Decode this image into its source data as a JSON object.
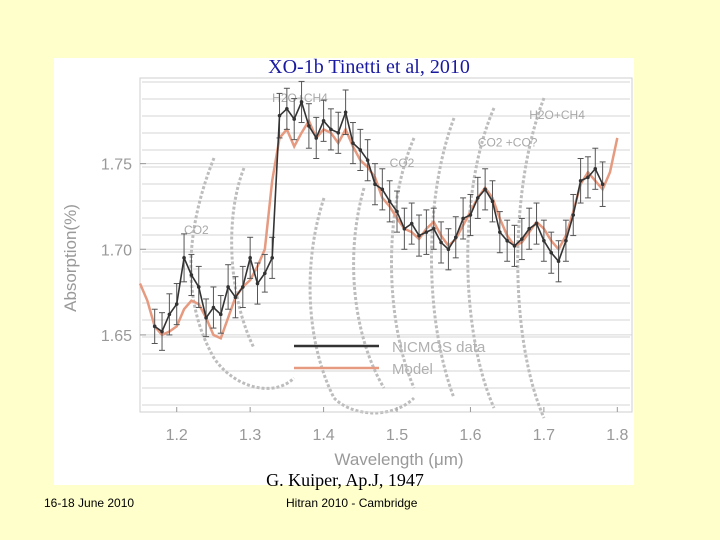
{
  "slide": {
    "title": "XO-1b Tinetti et al, 2010",
    "citation": "G. Kuiper, Ap.J, 1947",
    "footer_date": "16-18 June 2010",
    "footer_event": "Hitran 2010 - Cambridge"
  },
  "chart_data": {
    "type": "line",
    "xlabel": "Wavelength (μm)",
    "ylabel": "Absorption(%)",
    "xlim": [
      1.15,
      1.82
    ],
    "ylim": [
      1.605,
      1.8
    ],
    "xticks": [
      1.2,
      1.3,
      1.4,
      1.5,
      1.6,
      1.7,
      1.8
    ],
    "yticks": [
      1.65,
      1.7,
      1.75
    ],
    "xtick_labels": [
      "1.2",
      "1.3",
      "1.4",
      "1.5",
      "1.6",
      "1.7",
      "1.8"
    ],
    "ytick_labels": [
      "1.65",
      "1.70",
      "1.75"
    ],
    "legend": {
      "position": "bottom-center",
      "entries": [
        "NICMOS data",
        "Model"
      ]
    },
    "annotations": [
      {
        "text": "H2O+CH4",
        "x": 1.33,
        "y": 1.786
      },
      {
        "text": "H2O+CH4",
        "x": 1.68,
        "y": 1.776
      },
      {
        "text": "CO2 +CO?",
        "x": 1.61,
        "y": 1.76
      },
      {
        "text": "CO2",
        "x": 1.49,
        "y": 1.748
      },
      {
        "text": "CO2",
        "x": 1.21,
        "y": 1.709
      }
    ],
    "series": [
      {
        "name": "NICMOS data",
        "color": "#333333",
        "x": [
          1.17,
          1.18,
          1.19,
          1.2,
          1.21,
          1.22,
          1.23,
          1.24,
          1.25,
          1.26,
          1.27,
          1.28,
          1.29,
          1.3,
          1.31,
          1.32,
          1.33,
          1.34,
          1.35,
          1.36,
          1.37,
          1.38,
          1.39,
          1.4,
          1.41,
          1.42,
          1.43,
          1.44,
          1.45,
          1.46,
          1.47,
          1.48,
          1.49,
          1.5,
          1.51,
          1.52,
          1.53,
          1.54,
          1.55,
          1.56,
          1.57,
          1.58,
          1.59,
          1.6,
          1.61,
          1.62,
          1.63,
          1.64,
          1.65,
          1.66,
          1.67,
          1.68,
          1.69,
          1.7,
          1.71,
          1.72,
          1.73,
          1.74,
          1.75,
          1.76,
          1.77,
          1.78
        ],
        "y": [
          1.655,
          1.652,
          1.662,
          1.668,
          1.695,
          1.685,
          1.678,
          1.66,
          1.666,
          1.662,
          1.678,
          1.672,
          1.678,
          1.695,
          1.68,
          1.686,
          1.695,
          1.778,
          1.782,
          1.776,
          1.786,
          1.772,
          1.765,
          1.775,
          1.77,
          1.768,
          1.78,
          1.762,
          1.758,
          1.752,
          1.738,
          1.735,
          1.728,
          1.722,
          1.712,
          1.715,
          1.708,
          1.71,
          1.712,
          1.704,
          1.7,
          1.707,
          1.718,
          1.72,
          1.73,
          1.735,
          1.728,
          1.71,
          1.705,
          1.702,
          1.706,
          1.712,
          1.715,
          1.705,
          1.698,
          1.693,
          1.705,
          1.72,
          1.74,
          1.742,
          1.747,
          1.738
        ],
        "err": [
          0.01,
          0.011,
          0.012,
          0.012,
          0.014,
          0.012,
          0.012,
          0.011,
          0.012,
          0.011,
          0.013,
          0.012,
          0.012,
          0.012,
          0.012,
          0.011,
          0.012,
          0.013,
          0.012,
          0.012,
          0.012,
          0.013,
          0.012,
          0.012,
          0.012,
          0.012,
          0.013,
          0.012,
          0.012,
          0.012,
          0.012,
          0.012,
          0.012,
          0.012,
          0.012,
          0.012,
          0.012,
          0.013,
          0.012,
          0.012,
          0.012,
          0.012,
          0.012,
          0.012,
          0.012,
          0.012,
          0.012,
          0.012,
          0.012,
          0.012,
          0.012,
          0.012,
          0.012,
          0.012,
          0.012,
          0.012,
          0.012,
          0.012,
          0.013,
          0.012,
          0.012,
          0.013
        ]
      },
      {
        "name": "Model",
        "color": "#e69a80",
        "x": [
          1.15,
          1.16,
          1.17,
          1.18,
          1.19,
          1.2,
          1.21,
          1.22,
          1.23,
          1.24,
          1.25,
          1.26,
          1.27,
          1.28,
          1.29,
          1.3,
          1.31,
          1.32,
          1.33,
          1.34,
          1.35,
          1.36,
          1.37,
          1.38,
          1.39,
          1.4,
          1.41,
          1.42,
          1.43,
          1.44,
          1.45,
          1.46,
          1.47,
          1.48,
          1.49,
          1.5,
          1.51,
          1.52,
          1.53,
          1.54,
          1.55,
          1.56,
          1.57,
          1.58,
          1.59,
          1.6,
          1.61,
          1.62,
          1.63,
          1.64,
          1.65,
          1.66,
          1.67,
          1.68,
          1.69,
          1.7,
          1.71,
          1.72,
          1.73,
          1.74,
          1.75,
          1.76,
          1.77,
          1.78,
          1.79,
          1.8
        ],
        "y": [
          1.68,
          1.67,
          1.655,
          1.65,
          1.652,
          1.655,
          1.665,
          1.67,
          1.668,
          1.66,
          1.65,
          1.648,
          1.66,
          1.672,
          1.678,
          1.682,
          1.69,
          1.7,
          1.74,
          1.765,
          1.77,
          1.76,
          1.768,
          1.775,
          1.765,
          1.77,
          1.768,
          1.762,
          1.77,
          1.76,
          1.752,
          1.748,
          1.742,
          1.73,
          1.725,
          1.718,
          1.712,
          1.71,
          1.706,
          1.712,
          1.716,
          1.708,
          1.702,
          1.706,
          1.714,
          1.722,
          1.73,
          1.736,
          1.73,
          1.718,
          1.708,
          1.702,
          1.704,
          1.71,
          1.716,
          1.712,
          1.705,
          1.7,
          1.708,
          1.722,
          1.738,
          1.745,
          1.74,
          1.735,
          1.745,
          1.765
        ]
      }
    ]
  }
}
